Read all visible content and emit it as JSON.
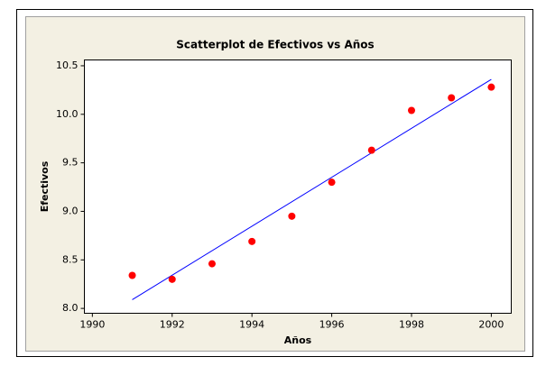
{
  "chart_data": {
    "type": "scatter",
    "title": "Scatterplot de Efectivos vs Años",
    "xlabel": "Años",
    "ylabel": "Efectivos",
    "x": [
      1991,
      1992,
      1993,
      1994,
      1995,
      1996,
      1997,
      1998,
      1999,
      2000
    ],
    "series": [
      {
        "color": "#ff0000",
        "values": [
          8.34,
          8.3,
          8.46,
          8.69,
          8.95,
          9.3,
          9.63,
          10.04,
          10.17,
          10.28
        ]
      }
    ],
    "fit": {
      "color": "#0000ff",
      "x": [
        1991,
        2000
      ],
      "values": [
        8.09,
        10.36
      ]
    },
    "xlim": [
      1989.8,
      2000.5
    ],
    "xticks": [
      1990,
      1992,
      1994,
      1996,
      1998,
      2000
    ],
    "ylim": [
      7.95,
      10.56
    ],
    "yticks": [
      {
        "value": 8,
        "label": "8.0"
      },
      8.5,
      {
        "value": 9,
        "label": "9.0"
      },
      9.5,
      {
        "value": 10,
        "label": "10.0"
      },
      10.5
    ]
  }
}
